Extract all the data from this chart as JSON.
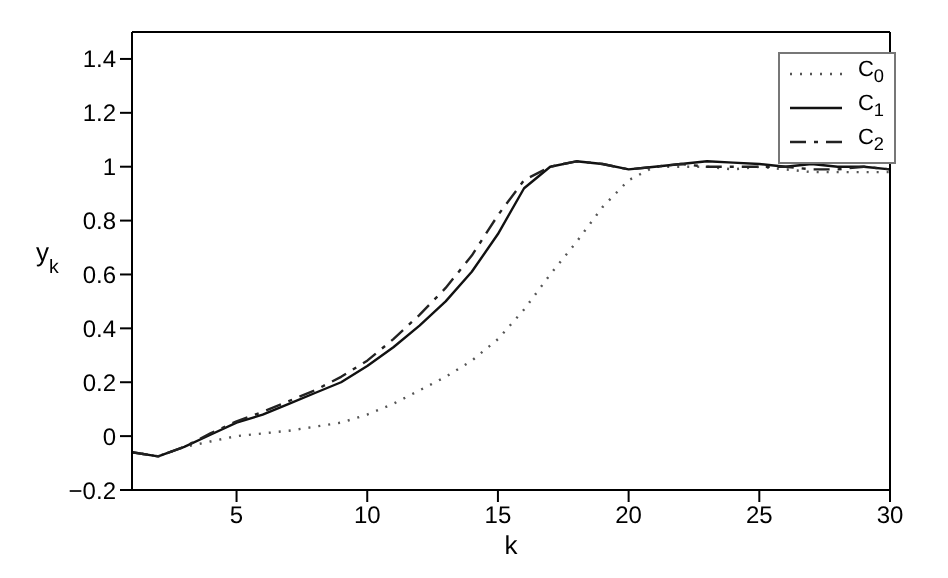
{
  "chart_data": {
    "type": "line",
    "xlabel": "k",
    "ylabel": "y$_{k}$",
    "x": [
      1,
      2,
      3,
      4,
      5,
      6,
      7,
      8,
      9,
      10,
      11,
      12,
      13,
      14,
      15,
      16,
      17,
      18,
      19,
      20,
      21,
      22,
      23,
      24,
      25,
      26,
      27,
      28,
      29,
      30
    ],
    "series": [
      {
        "name": "C$_{0}$",
        "color": "#555555",
        "line_style": "dotted",
        "values": [
          -0.06,
          -0.075,
          -0.04,
          -0.02,
          0.0,
          0.01,
          0.02,
          0.035,
          0.05,
          0.08,
          0.12,
          0.17,
          0.22,
          0.28,
          0.36,
          0.47,
          0.6,
          0.72,
          0.85,
          0.95,
          1.0,
          1.0,
          1.0,
          0.99,
          1.0,
          0.99,
          0.98,
          0.98,
          0.98,
          0.98
        ]
      },
      {
        "name": "C$_{1}$",
        "color": "#111111",
        "line_style": "solid",
        "values": [
          -0.06,
          -0.075,
          -0.04,
          0.005,
          0.05,
          0.08,
          0.12,
          0.16,
          0.2,
          0.26,
          0.33,
          0.41,
          0.5,
          0.61,
          0.75,
          0.92,
          1.0,
          1.02,
          1.01,
          0.99,
          1.0,
          1.01,
          1.02,
          1.015,
          1.01,
          1.0,
          1.01,
          1.0,
          1.0,
          0.99
        ]
      },
      {
        "name": "C$_{2}$",
        "color": "#222222",
        "line_style": "dashed",
        "values": [
          -0.06,
          -0.075,
          -0.04,
          0.01,
          0.055,
          0.09,
          0.13,
          0.17,
          0.22,
          0.28,
          0.36,
          0.45,
          0.55,
          0.67,
          0.82,
          0.95,
          1.0,
          1.02,
          1.01,
          0.99,
          1.0,
          1.01,
          1.0,
          1.0,
          1.0,
          1.0,
          0.99,
          0.99,
          1.0,
          0.99
        ]
      }
    ],
    "xlim": [
      1,
      30
    ],
    "xticks": [
      5,
      10,
      15,
      20,
      25,
      30
    ],
    "ylim": [
      -0.2,
      1.5
    ],
    "yticks": [
      -0.2,
      0,
      0.2,
      0.4,
      0.6,
      0.8,
      1,
      1.2,
      1.4
    ],
    "legend": "top right",
    "marker": "none",
    "grid": false
  }
}
